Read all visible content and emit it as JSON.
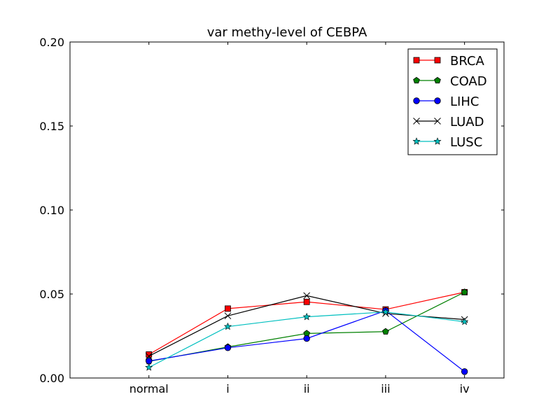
{
  "chart_data": {
    "type": "line",
    "title": "var methy-level of CEBPA",
    "xlabel": "",
    "ylabel": "",
    "categories": [
      "normal",
      "i",
      "ii",
      "iii",
      "iv"
    ],
    "x_range": [
      -1,
      4.5
    ],
    "ylim": [
      0,
      0.2
    ],
    "yticks": [
      "0.00",
      "0.05",
      "0.10",
      "0.15",
      "0.20"
    ],
    "ytick_values": [
      0,
      0.05,
      0.1,
      0.15,
      0.2
    ],
    "grid": false,
    "legend_position": "top-right",
    "series": [
      {
        "name": "BRCA",
        "color": "#ff0000",
        "marker": "square",
        "values": [
          0.014,
          0.0413,
          0.0453,
          0.0408,
          0.0511
        ]
      },
      {
        "name": "COAD",
        "color": "#008000",
        "marker": "pentagon",
        "values": [
          0.0099,
          0.0185,
          0.0265,
          0.0276,
          0.0511
        ]
      },
      {
        "name": "LIHC",
        "color": "#0000ff",
        "marker": "circle",
        "values": [
          0.0101,
          0.018,
          0.0235,
          0.0401,
          0.0038
        ]
      },
      {
        "name": "LUAD",
        "color": "#000000",
        "marker": "x",
        "values": [
          0.013,
          0.037,
          0.049,
          0.0384,
          0.0348
        ]
      },
      {
        "name": "LUSC",
        "color": "#00bfbf",
        "marker": "star",
        "values": [
          0.0063,
          0.0306,
          0.0364,
          0.0393,
          0.0335
        ]
      }
    ]
  }
}
